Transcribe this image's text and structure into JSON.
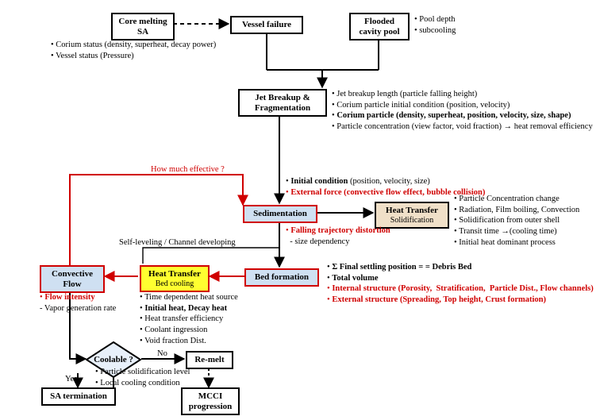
{
  "type": "flowchart",
  "colors": {
    "bg": "#ffffff",
    "stroke": "#000000",
    "red": "#d00000",
    "blue_fill": "#cfe0f2",
    "tan_fill": "#f0e0c8",
    "yellow_fill": "#ffff30",
    "diamond_fill": "#e8f0fa"
  },
  "nodes": {
    "core": {
      "l1": "Core melting",
      "l2": "SA"
    },
    "vessel": {
      "l1": "Vessel failure"
    },
    "cavity": {
      "l1": "Flooded",
      "l2": "cavity pool"
    },
    "jet": {
      "l1": "Jet Breakup &",
      "l2": "Fragmentation"
    },
    "sed": {
      "l1": "Sedimentation"
    },
    "htSolid": {
      "l1": "Heat Transfer",
      "l2": "Solidification"
    },
    "bed": {
      "l1": "Bed formation"
    },
    "htCool": {
      "l1": "Heat Transfer",
      "l2": "Bed cooling"
    },
    "conv": {
      "l1": "Convective",
      "l2": "Flow"
    },
    "cool": {
      "l1": "Coolable ?"
    },
    "remelt": {
      "l1": "Re-melt"
    },
    "saterm": {
      "l1": "SA termination"
    },
    "mcci": {
      "l1": "MCCI",
      "l2": "progression"
    }
  },
  "annot": {
    "core_b": [
      "• Corium status (density, superheat, decay power)",
      "• Vessel status (Pressure)"
    ],
    "cavity_b": [
      "• Pool depth",
      "• subcooling"
    ],
    "jet_b": [
      "• Jet breakup length (particle falling height)",
      "• Corium particle initial condition (position, velocity)",
      "• <b>Corium particle (density, superheat, position, velocity, size, shape)</b>",
      "• Particle concentration (view factor, void fraction) → heat removal efficiency"
    ],
    "sed_above": [
      "• <b>Initial condition</b> (position, velocity, size)",
      "<span class='red'>• <b>External force (convective flow effect, bubble collision)</b></span>"
    ],
    "sed_below": [
      "<span class='red'>• <b>Falling trajectory distortion</b></span>",
      "&nbsp;&nbsp;- size dependency"
    ],
    "htSolid_b": [
      "• Particle Concentration change",
      "• Radiation, Film boiling, Convection",
      "• Solidification from outer shell",
      "• Transit time →(cooling time)",
      "• Initial heat dominant process"
    ],
    "bed_b": [
      "• <b>Σ Final settling position = = Debris Bed</b>",
      "• <b>Total volume</b>",
      "<span class='red'>• <b>Internal structure (Porosity,&nbsp; Stratification,&nbsp; Particle Dist., Flow channels)</b></span>",
      "<span class='red'>• <b>External structure (Spreading, Top height, Crust formation)</b></span>"
    ],
    "htCool_b": [
      "• Time dependent heat source",
      "• <b>Initial heat, Decay heat</b>",
      "• Heat transfer efficiency",
      "• Coolant ingression",
      "• Void fraction Dist."
    ],
    "conv_b": [
      "<span class='red'>• <b>Flow intensity</b></span>",
      "- Vapor generation rate"
    ],
    "cool_b": [
      "• Particle solidification level",
      "• Local cooling condition"
    ],
    "selflevel": "Self-leveling / Channel developing",
    "howmuch": "How much effective ?",
    "no": "No",
    "yes": "Yes"
  }
}
